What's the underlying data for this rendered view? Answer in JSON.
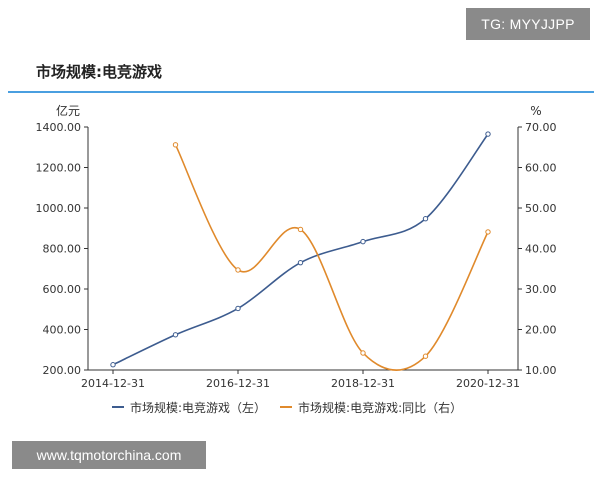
{
  "watermark_top": "TG: MYYJJPP",
  "watermark_bottom": "www.tqmotorchina.com",
  "colors": {
    "series_left": "#3d5c8f",
    "series_right": "#e08a2c",
    "rule": "#4a9fe0"
  },
  "chart_data": {
    "type": "line",
    "title": "市场规模:电竞游戏",
    "y_left_unit": "亿元",
    "y_right_unit": "%",
    "ylim_left": [
      200,
      1400
    ],
    "ylim_right": [
      10,
      70
    ],
    "yticks_left": [
      "1400.00",
      "1200.00",
      "1000.00",
      "800.00",
      "600.00",
      "400.00",
      "200.00"
    ],
    "yticks_right": [
      "70.00",
      "60.00",
      "50.00",
      "40.00",
      "30.00",
      "20.00",
      "10.00"
    ],
    "x_ticks": [
      "2014-12-31",
      "2016-12-31",
      "2018-12-31",
      "2020-12-31"
    ],
    "x": [
      "2014-12-31",
      "2015-12-31",
      "2016-12-31",
      "2017-12-31",
      "2018-12-31",
      "2019-12-31",
      "2020-12-31"
    ],
    "grid": false,
    "legend_position": "bottom",
    "series": [
      {
        "name": "市场规模:电竞游戏（左）",
        "axis": "left",
        "values": [
          226,
          374,
          504,
          730,
          834,
          947,
          1365
        ]
      },
      {
        "name": "市场规模:电竞游戏:同比（右）",
        "axis": "right",
        "values": [
          null,
          65.6,
          34.7,
          44.7,
          14.2,
          13.4,
          44.1
        ]
      }
    ]
  }
}
